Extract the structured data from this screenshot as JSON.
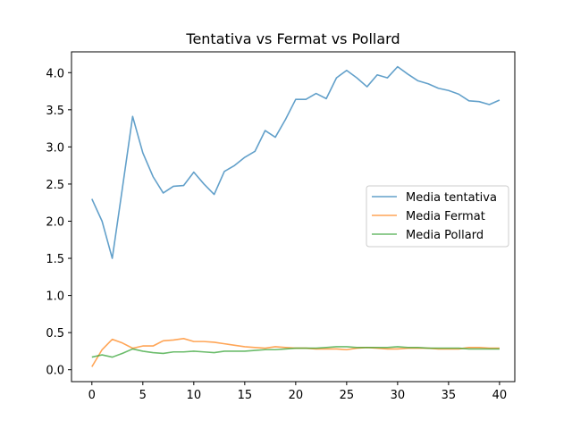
{
  "chart_data": {
    "type": "line",
    "title": "Tentativa vs Fermat vs Pollard",
    "xlabel": "",
    "ylabel": "",
    "xlim": [
      -2,
      41.5
    ],
    "ylim": [
      -0.16,
      4.28
    ],
    "x_ticks": [
      0,
      5,
      10,
      15,
      20,
      25,
      30,
      35,
      40
    ],
    "x_tick_labels": [
      "0",
      "5",
      "10",
      "15",
      "20",
      "25",
      "30",
      "35",
      "40"
    ],
    "y_ticks": [
      0.0,
      0.5,
      1.0,
      1.5,
      2.0,
      2.5,
      3.0,
      3.5,
      4.0
    ],
    "y_tick_labels": [
      "0.0",
      "0.5",
      "1.0",
      "1.5",
      "2.0",
      "2.5",
      "3.0",
      "3.5",
      "4.0"
    ],
    "grid": false,
    "legend_position": "center-right",
    "x": [
      0,
      1,
      2,
      3,
      4,
      5,
      6,
      7,
      8,
      9,
      10,
      11,
      12,
      13,
      14,
      15,
      16,
      17,
      18,
      19,
      20,
      21,
      22,
      23,
      24,
      25,
      26,
      27,
      28,
      29,
      30,
      31,
      32,
      33,
      34,
      35,
      36,
      37,
      38,
      39,
      40
    ],
    "series": [
      {
        "name": "Media tentativa",
        "color": "#1f77b4",
        "values": [
          2.3,
          2.0,
          1.5,
          2.45,
          3.41,
          2.92,
          2.6,
          2.38,
          2.47,
          2.48,
          2.66,
          2.5,
          2.36,
          2.67,
          2.75,
          2.86,
          2.94,
          3.22,
          3.13,
          3.37,
          3.64,
          3.64,
          3.72,
          3.65,
          3.93,
          4.03,
          3.93,
          3.81,
          3.97,
          3.93,
          4.08,
          3.98,
          3.89,
          3.85,
          3.79,
          3.76,
          3.71,
          3.62,
          3.61,
          3.57,
          3.63
        ]
      },
      {
        "name": "Media Fermat",
        "color": "#ff7f0e",
        "values": [
          0.04,
          0.27,
          0.41,
          0.36,
          0.29,
          0.32,
          0.32,
          0.39,
          0.4,
          0.42,
          0.38,
          0.38,
          0.37,
          0.35,
          0.33,
          0.31,
          0.3,
          0.29,
          0.31,
          0.3,
          0.29,
          0.29,
          0.28,
          0.28,
          0.28,
          0.27,
          0.29,
          0.3,
          0.29,
          0.28,
          0.28,
          0.29,
          0.29,
          0.29,
          0.28,
          0.28,
          0.28,
          0.3,
          0.3,
          0.29,
          0.29
        ]
      },
      {
        "name": "Media Pollard",
        "color": "#2ca02c",
        "values": [
          0.17,
          0.2,
          0.17,
          0.22,
          0.28,
          0.25,
          0.23,
          0.22,
          0.24,
          0.24,
          0.25,
          0.24,
          0.23,
          0.25,
          0.25,
          0.25,
          0.26,
          0.27,
          0.27,
          0.28,
          0.29,
          0.29,
          0.29,
          0.3,
          0.31,
          0.31,
          0.3,
          0.3,
          0.3,
          0.3,
          0.31,
          0.3,
          0.3,
          0.29,
          0.29,
          0.29,
          0.29,
          0.28,
          0.28,
          0.28,
          0.28
        ]
      }
    ]
  }
}
